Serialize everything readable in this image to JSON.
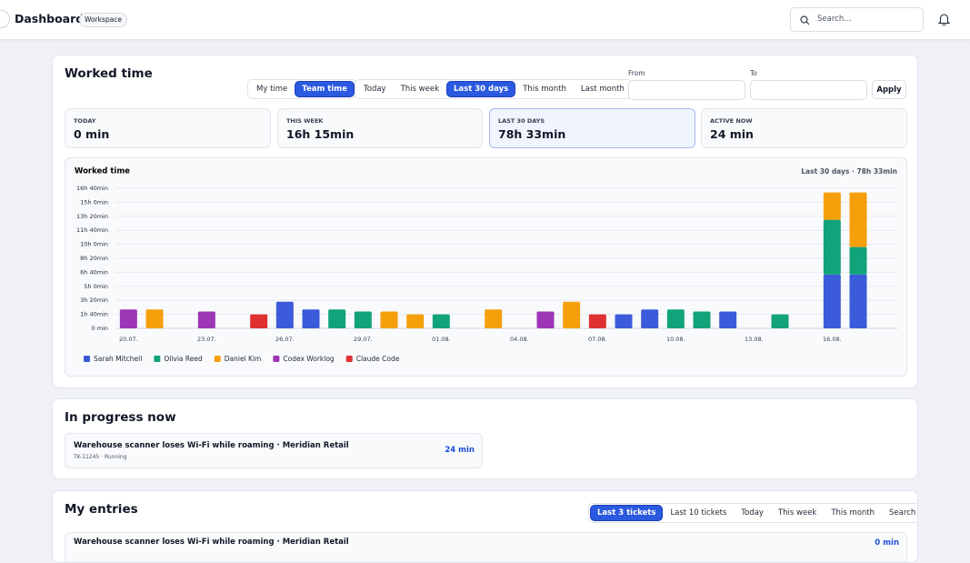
{
  "header": {
    "title": "Dashboard",
    "badge": "Workspace",
    "search_placeholder": "Search..."
  },
  "worked_time": {
    "title": "Worked time",
    "scope_tabs": [
      "My time",
      "Team time"
    ],
    "scope_active": 1,
    "range_tabs": [
      "Today",
      "This week",
      "Last 30 days",
      "This month",
      "Last month"
    ],
    "range_active": 2,
    "from_label": "From",
    "to_label": "To",
    "apply": "Apply",
    "stats": [
      {
        "label": "TODAY",
        "value": "0 min"
      },
      {
        "label": "THIS WEEK",
        "value": "16h 15min"
      },
      {
        "label": "LAST 30 DAYS",
        "value": "78h 33min"
      },
      {
        "label": "ACTIVE NOW",
        "value": "24 min"
      }
    ],
    "stats_highlighted": 2,
    "chart_data": {
      "type": "bar",
      "stacked": true,
      "title": "Worked time",
      "subtitle": "Last 30 days · 78h 33min",
      "categories": [
        "20.07.",
        null,
        null,
        "23.07.",
        null,
        null,
        "26.07.",
        null,
        null,
        "29.07.",
        null,
        null,
        "01.08.",
        null,
        null,
        "04.08.",
        null,
        null,
        "07.08.",
        null,
        null,
        "10.08.",
        null,
        null,
        "13.08.",
        null,
        null,
        "16.08.",
        null,
        null
      ],
      "series": [
        {
          "name": "Sarah Mitchell",
          "color": "#3b5bdb",
          "values": [
            null,
            null,
            null,
            null,
            null,
            null,
            190,
            135,
            null,
            null,
            null,
            null,
            null,
            null,
            null,
            null,
            null,
            null,
            null,
            100,
            135,
            null,
            null,
            120,
            null,
            null,
            null,
            385,
            385,
            null
          ]
        },
        {
          "name": "Olivia Reed",
          "color": "#12a37a",
          "values": [
            null,
            null,
            null,
            null,
            null,
            null,
            null,
            null,
            135,
            120,
            null,
            null,
            100,
            null,
            null,
            null,
            null,
            null,
            null,
            null,
            null,
            135,
            120,
            null,
            null,
            100,
            null,
            390,
            195,
            null
          ]
        },
        {
          "name": "Daniel Kim",
          "color": "#f59f0b",
          "values": [
            null,
            135,
            null,
            null,
            null,
            null,
            null,
            null,
            null,
            null,
            120,
            100,
            null,
            null,
            135,
            null,
            null,
            190,
            null,
            null,
            null,
            null,
            null,
            null,
            null,
            null,
            null,
            195,
            390,
            null
          ]
        },
        {
          "name": "Codex Worklog",
          "color": "#9c36b5",
          "values": [
            135,
            null,
            null,
            120,
            null,
            null,
            null,
            null,
            null,
            null,
            null,
            null,
            null,
            null,
            null,
            null,
            120,
            null,
            null,
            null,
            null,
            null,
            null,
            null,
            null,
            null,
            null,
            null,
            null,
            null
          ]
        },
        {
          "name": "Claude Code",
          "color": "#e03131",
          "values": [
            null,
            null,
            null,
            null,
            null,
            100,
            null,
            null,
            null,
            null,
            null,
            null,
            null,
            null,
            null,
            null,
            null,
            null,
            100,
            null,
            null,
            null,
            null,
            null,
            null,
            null,
            null,
            null,
            null,
            null
          ]
        }
      ],
      "ylim": [
        0,
        1000
      ],
      "yticks": [
        {
          "value": 0,
          "label": "0 min"
        },
        {
          "value": 100,
          "label": "1h 40min"
        },
        {
          "value": 200,
          "label": "3h 20min"
        },
        {
          "value": 300,
          "label": "5h 0min"
        },
        {
          "value": 400,
          "label": "6h 40min"
        },
        {
          "value": 500,
          "label": "8h 20min"
        },
        {
          "value": 600,
          "label": "10h 0min"
        },
        {
          "value": 700,
          "label": "11h 40min"
        },
        {
          "value": 800,
          "label": "13h 20min"
        },
        {
          "value": 900,
          "label": "15h 0min"
        },
        {
          "value": 1000,
          "label": "16h 40min"
        }
      ],
      "grid": true,
      "legend": "bottom-left"
    }
  },
  "in_progress": {
    "title": "In progress now",
    "items": [
      {
        "title": "Warehouse scanner loses Wi-Fi while roaming · Meridian Retail",
        "meta": "TK-11245 · Running",
        "duration": "24 min"
      }
    ]
  },
  "entries": {
    "title": "My entries",
    "tabs": [
      "Last 3 tickets",
      "Last 10 tickets",
      "Today",
      "This week",
      "This month",
      "Search"
    ],
    "tabs_active": 0,
    "items": [
      {
        "title": "Warehouse scanner loses Wi-Fi while roaming · Meridian Retail",
        "duration": "0 min"
      }
    ]
  }
}
